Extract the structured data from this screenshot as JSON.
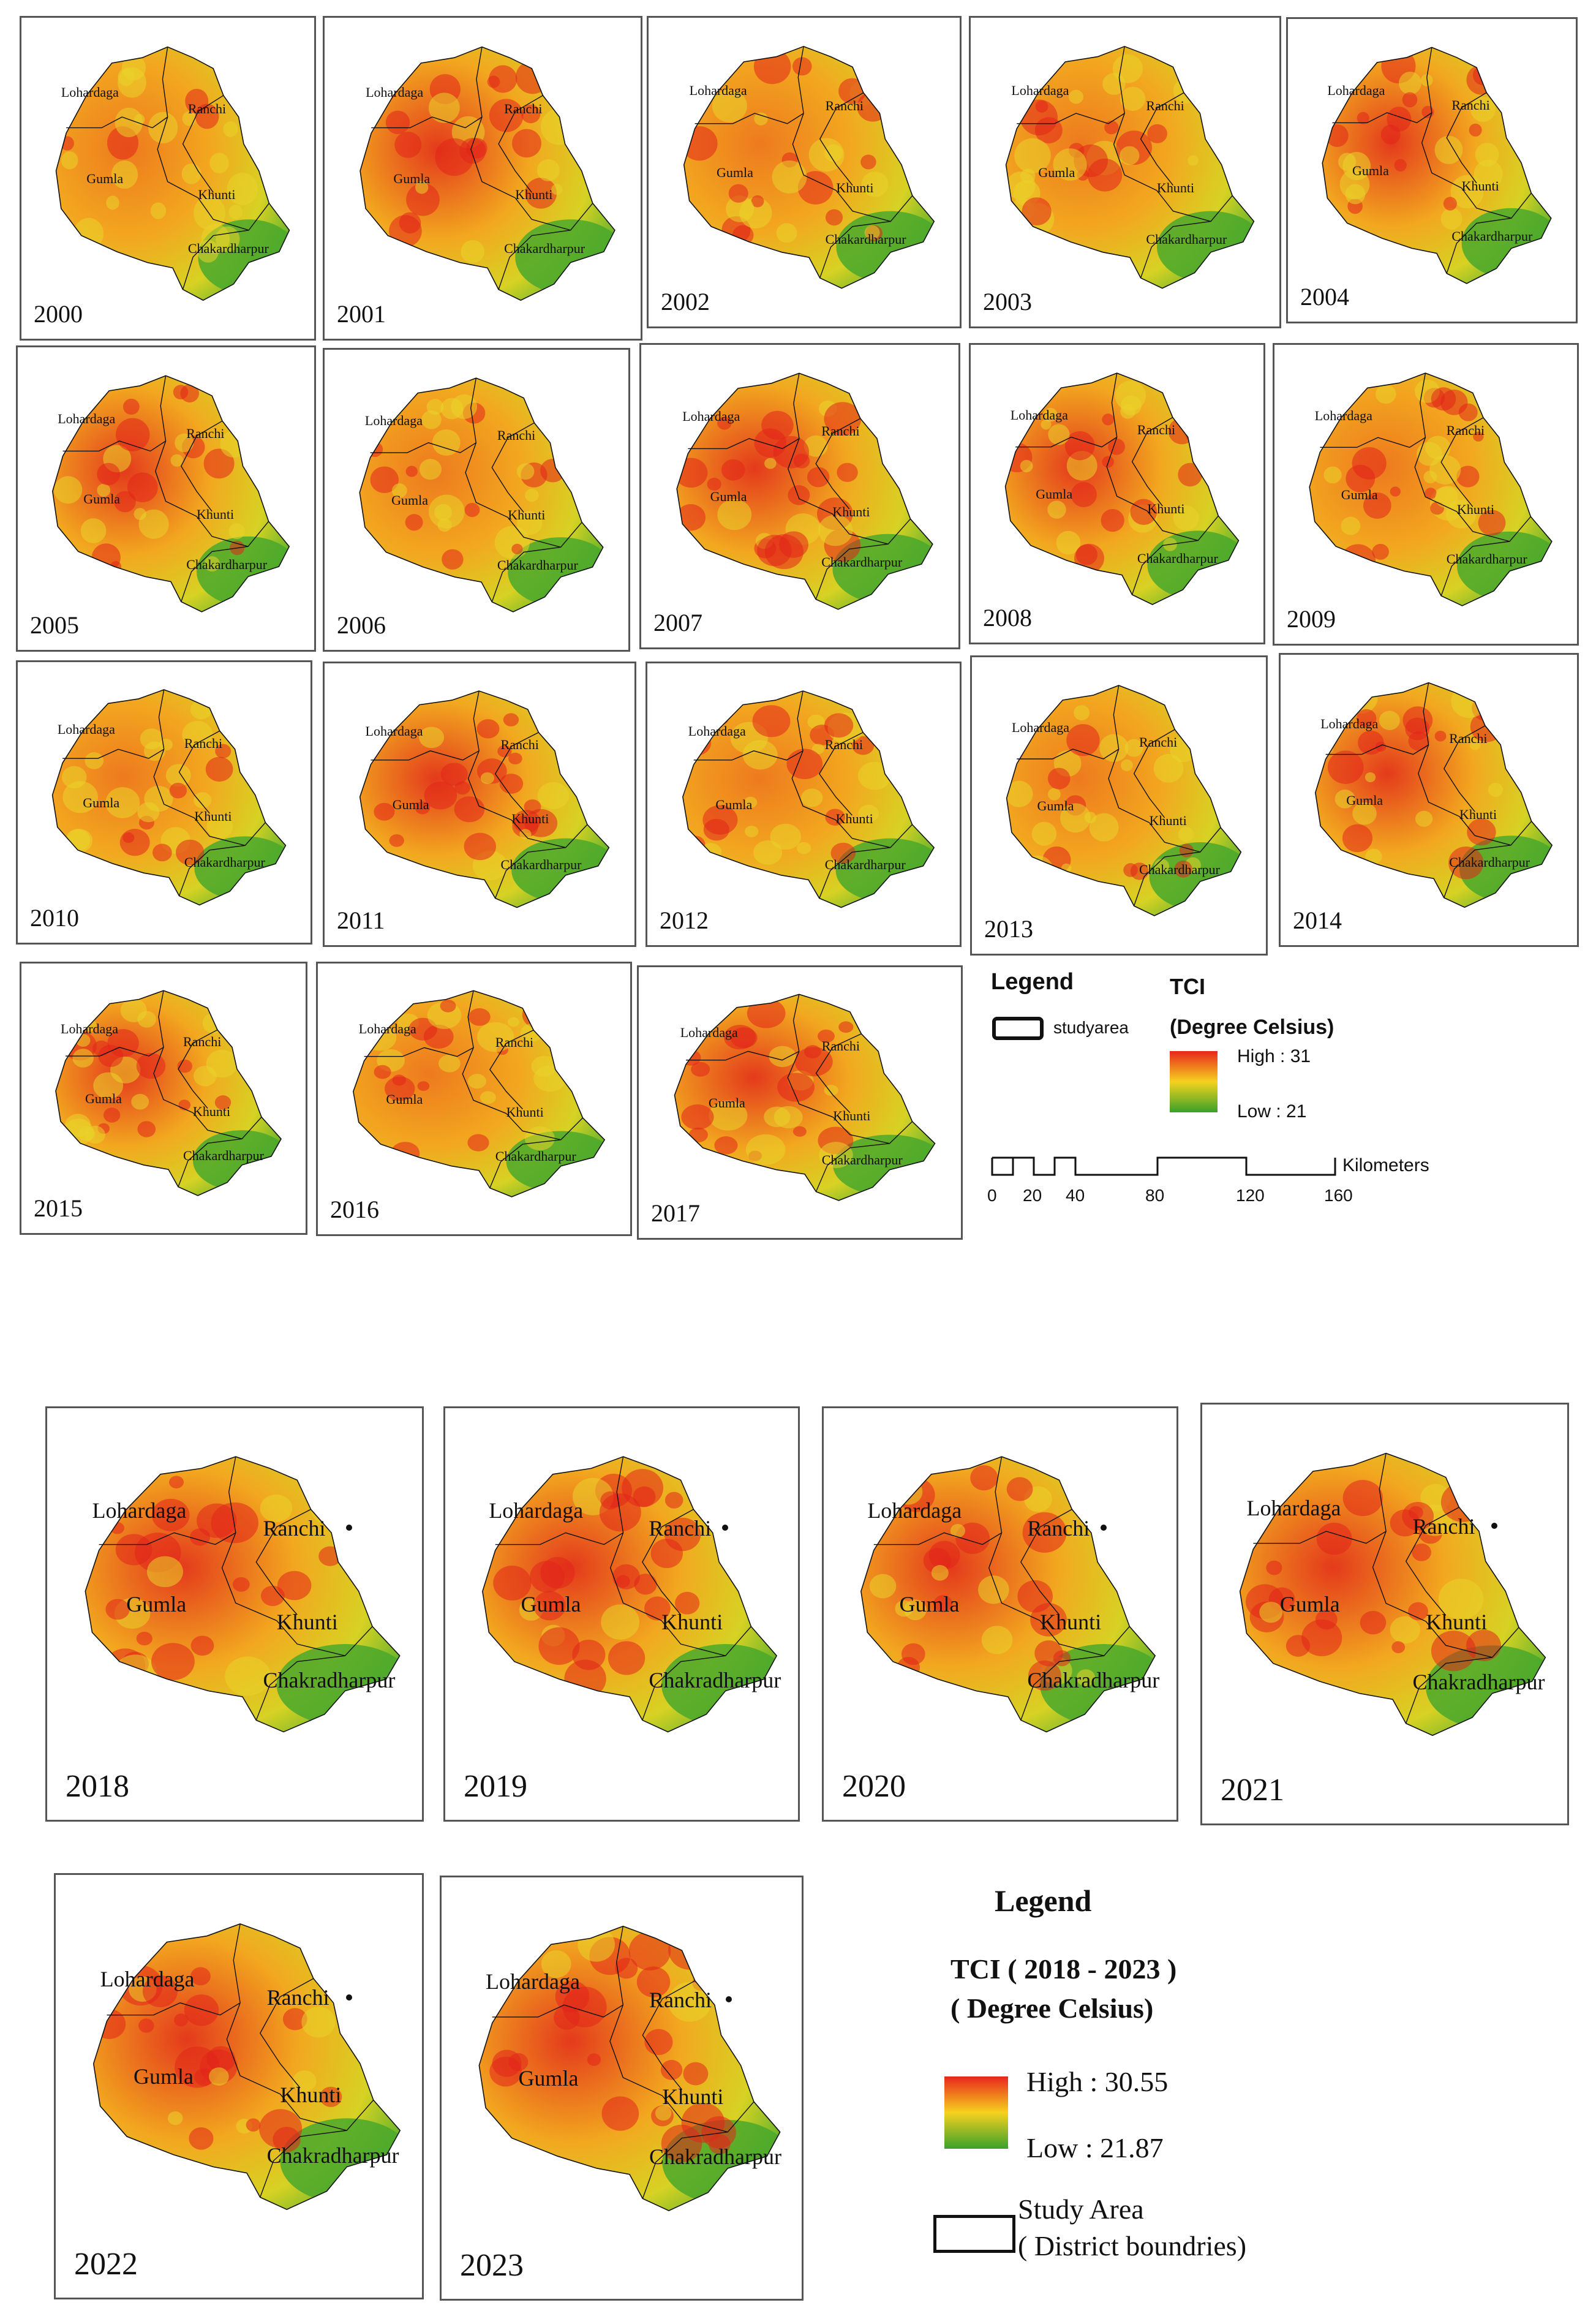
{
  "districts": [
    "Lohardaga",
    "Ranchi",
    "Gumla",
    "Khunti",
    "Chakardharpur"
  ],
  "districts_2018_2023": [
    "Lohardaga",
    "Ranchi",
    "Gumla",
    "Khunti",
    "Chakradharpur"
  ],
  "panels_top": [
    {
      "year": "2000"
    },
    {
      "year": "2001"
    },
    {
      "year": "2002"
    },
    {
      "year": "2003"
    },
    {
      "year": "2004"
    },
    {
      "year": "2005"
    },
    {
      "year": "2006"
    },
    {
      "year": "2007"
    },
    {
      "year": "2008"
    },
    {
      "year": "2009"
    },
    {
      "year": "2010"
    },
    {
      "year": "2011"
    },
    {
      "year": "2012"
    },
    {
      "year": "2013"
    },
    {
      "year": "2014"
    },
    {
      "year": "2015"
    },
    {
      "year": "2016"
    },
    {
      "year": "2017"
    }
  ],
  "panels_bottom": [
    {
      "year": "2018"
    },
    {
      "year": "2019"
    },
    {
      "year": "2020"
    },
    {
      "year": "2021"
    },
    {
      "year": "2022"
    },
    {
      "year": "2023"
    }
  ],
  "legend_top": {
    "title": "Legend",
    "boundary_label": "studyarea",
    "ramp_title": "TCI",
    "ramp_units": "(Degree Celsius)",
    "high": "High : 31",
    "low": "Low : 21",
    "scale_unit": "Kilometers",
    "scale_ticks": [
      "0",
      "20",
      "40",
      "80",
      "120",
      "160"
    ]
  },
  "legend_bottom": {
    "title": "Legend",
    "ramp_title": "TCI ( 2018 - 2023 )",
    "ramp_units": "( Degree Celsius)",
    "high": "High : 30.55",
    "low": "Low : 21.87",
    "boundary_label_1": "Study Area",
    "boundary_label_2": "( District boundries)"
  },
  "colors": {
    "high": "#e8261c",
    "mid": "#f6d21e",
    "low": "#3aa12a",
    "border": "#111111"
  }
}
